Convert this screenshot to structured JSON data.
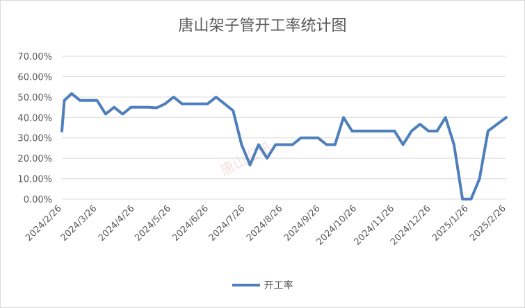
{
  "chart_data": {
    "type": "line",
    "title": "唐山架子管开工率统计图",
    "xlabel": "",
    "ylabel": "",
    "ylim": [
      0,
      70
    ],
    "y_ticks": [
      "0.00%",
      "10.00%",
      "20.00%",
      "30.00%",
      "40.00%",
      "50.00%",
      "60.00%",
      "70.00%"
    ],
    "x_ticks": [
      "2024/2/26",
      "2024/3/26",
      "2024/4/26",
      "2024/5/26",
      "2024/6/26",
      "2024/7/26",
      "2024/8/26",
      "2024/9/26",
      "2024/10/26",
      "2024/11/26",
      "2024/12/26",
      "2025/1/26",
      "2025/2/26"
    ],
    "grid": true,
    "legend": "bottom",
    "line_color": "#4e7fbd",
    "series": [
      {
        "name": "开工率",
        "points": [
          [
            "2024/2/26",
            33.33
          ],
          [
            "2024/2/28",
            48.33
          ],
          [
            "2024/3/5",
            51.67
          ],
          [
            "2024/3/12",
            48.33
          ],
          [
            "2024/3/19",
            48.33
          ],
          [
            "2024/3/26",
            48.33
          ],
          [
            "2024/4/2",
            41.67
          ],
          [
            "2024/4/9",
            45.0
          ],
          [
            "2024/4/16",
            41.67
          ],
          [
            "2024/4/23",
            45.0
          ],
          [
            "2024/4/30",
            45.0
          ],
          [
            "2024/5/7",
            45.0
          ],
          [
            "2024/5/14",
            44.67
          ],
          [
            "2024/5/21",
            46.67
          ],
          [
            "2024/5/28",
            50.0
          ],
          [
            "2024/6/4",
            46.67
          ],
          [
            "2024/6/11",
            46.67
          ],
          [
            "2024/6/18",
            46.67
          ],
          [
            "2024/6/25",
            46.67
          ],
          [
            "2024/7/2",
            50.0
          ],
          [
            "2024/7/9",
            46.67
          ],
          [
            "2024/7/16",
            43.33
          ],
          [
            "2024/7/23",
            26.67
          ],
          [
            "2024/7/30",
            16.67
          ],
          [
            "2024/8/6",
            26.67
          ],
          [
            "2024/8/13",
            20.0
          ],
          [
            "2024/8/20",
            26.67
          ],
          [
            "2024/8/27",
            26.67
          ],
          [
            "2024/9/3",
            26.67
          ],
          [
            "2024/9/10",
            30.0
          ],
          [
            "2024/9/17",
            30.0
          ],
          [
            "2024/9/24",
            30.0
          ],
          [
            "2024/10/1",
            26.67
          ],
          [
            "2024/10/8",
            26.67
          ],
          [
            "2024/10/15",
            40.0
          ],
          [
            "2024/10/22",
            33.33
          ],
          [
            "2024/10/29",
            33.33
          ],
          [
            "2024/11/5",
            33.33
          ],
          [
            "2024/11/12",
            33.33
          ],
          [
            "2024/11/19",
            33.33
          ],
          [
            "2024/11/26",
            33.33
          ],
          [
            "2024/12/3",
            26.67
          ],
          [
            "2024/12/10",
            33.33
          ],
          [
            "2024/12/17",
            36.67
          ],
          [
            "2024/12/24",
            33.33
          ],
          [
            "2024/12/31",
            33.33
          ],
          [
            "2025/1/7",
            40.0
          ],
          [
            "2025/1/14",
            26.67
          ],
          [
            "2025/1/21",
            0.0
          ],
          [
            "2025/1/28",
            0.0
          ],
          [
            "2025/2/4",
            10.0
          ],
          [
            "2025/2/11",
            33.33
          ],
          [
            "2025/2/26",
            40.0
          ]
        ]
      }
    ]
  },
  "watermark_text": "唐山汇讯"
}
